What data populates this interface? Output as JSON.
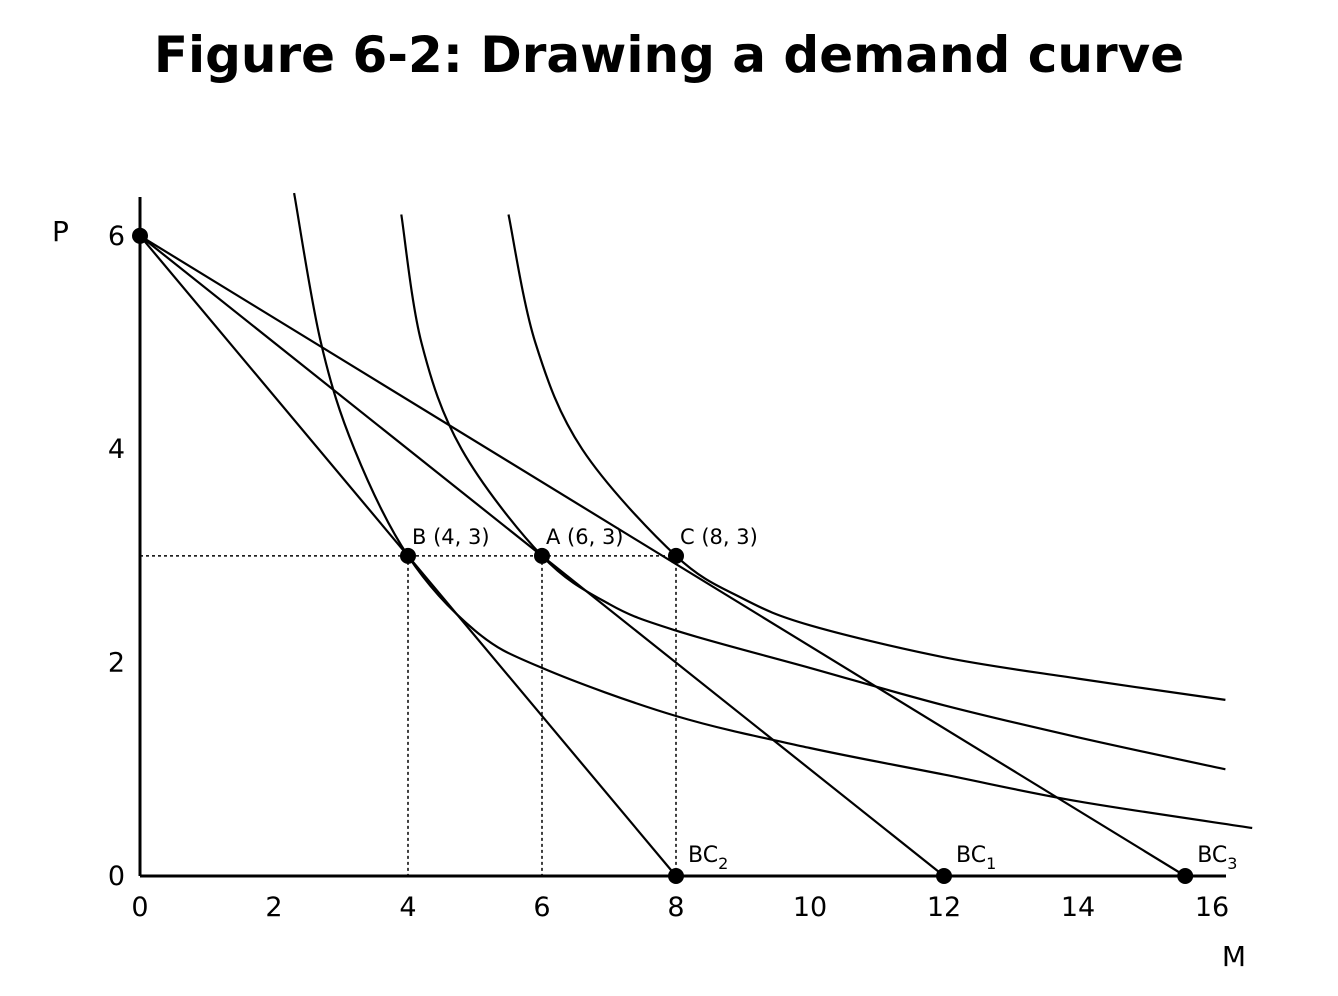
{
  "chart_data": {
    "type": "line",
    "title": "Figure 6-2: Drawing a demand curve",
    "xlabel": "M",
    "ylabel": "P",
    "xlim": [
      0,
      16
    ],
    "ylim": [
      0,
      6
    ],
    "x_ticks": [
      "0",
      "2",
      "4",
      "6",
      "8",
      "10",
      "12",
      "14",
      "16"
    ],
    "y_ticks": [
      "0",
      "2",
      "4",
      "6"
    ],
    "budget_lines": [
      {
        "label": "BC2",
        "base": "BC",
        "sub": "2",
        "from": [
          0,
          6
        ],
        "to": [
          8,
          0
        ]
      },
      {
        "label": "BC1",
        "base": "BC",
        "sub": "1",
        "from": [
          0,
          6
        ],
        "to": [
          12,
          0
        ]
      },
      {
        "label": "BC3",
        "base": "BC",
        "sub": "3",
        "from": [
          0,
          6
        ],
        "to": [
          16,
          0
        ]
      }
    ],
    "indifference_curves": [
      {
        "points": [
          [
            2.3,
            6.4
          ],
          [
            2.7,
            5.0
          ],
          [
            3.2,
            4.0
          ],
          [
            4.0,
            3.0
          ],
          [
            5.0,
            2.3
          ],
          [
            6.0,
            1.95
          ],
          [
            8.0,
            1.5
          ],
          [
            10.0,
            1.2
          ],
          [
            12.0,
            0.95
          ],
          [
            14.0,
            0.7
          ],
          [
            16.6,
            0.45
          ]
        ]
      },
      {
        "points": [
          [
            3.9,
            6.2
          ],
          [
            4.2,
            5.0
          ],
          [
            4.8,
            4.0
          ],
          [
            6.0,
            3.0
          ],
          [
            7.0,
            2.55
          ],
          [
            8.0,
            2.3
          ],
          [
            10.0,
            1.95
          ],
          [
            12.0,
            1.6
          ],
          [
            14.0,
            1.3
          ],
          [
            16.2,
            1.0
          ]
        ]
      },
      {
        "points": [
          [
            5.5,
            6.2
          ],
          [
            5.9,
            5.0
          ],
          [
            6.6,
            4.0
          ],
          [
            8.0,
            3.0
          ],
          [
            9.0,
            2.6
          ],
          [
            10.0,
            2.35
          ],
          [
            12.0,
            2.05
          ],
          [
            14.0,
            1.85
          ],
          [
            16.2,
            1.65
          ]
        ]
      }
    ],
    "points": [
      {
        "label": "B (4, 3)",
        "x": 4,
        "y": 3
      },
      {
        "label": "A (6, 3)",
        "x": 6,
        "y": 3
      },
      {
        "label": "C (8, 3)",
        "x": 8,
        "y": 3
      }
    ],
    "reference_lines": {
      "y": 3,
      "x": [
        4,
        6,
        8
      ],
      "style": "dotted"
    },
    "grid": false
  }
}
